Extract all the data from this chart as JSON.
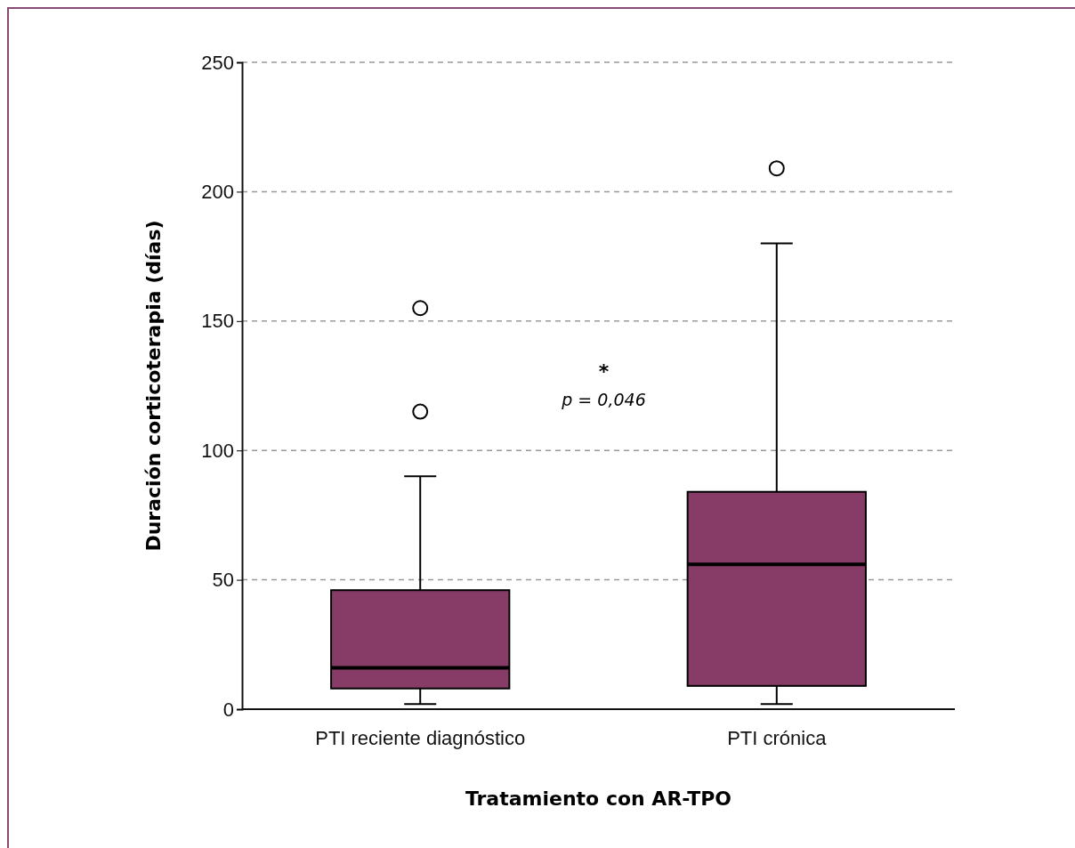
{
  "chart_data": {
    "type": "box",
    "xlabel": "Tratamiento con AR-TPO",
    "ylabel": "Duración corticoterapia (días)",
    "categories": [
      "PTI reciente diagnóstico",
      "PTI crónica"
    ],
    "boxes": [
      {
        "low": 2,
        "q1": 8,
        "median": 16,
        "q3": 46,
        "high": 90,
        "outliers": [
          115,
          155
        ]
      },
      {
        "low": 2,
        "q1": 9,
        "median": 56,
        "q3": 84,
        "high": 180,
        "outliers": [
          209
        ]
      }
    ],
    "color": "#863c66",
    "ylim": [
      0,
      250
    ],
    "yticks": [
      0,
      50,
      100,
      150,
      200,
      250
    ],
    "grid": "y",
    "annotations": [
      "*",
      "p = 0,046"
    ]
  }
}
